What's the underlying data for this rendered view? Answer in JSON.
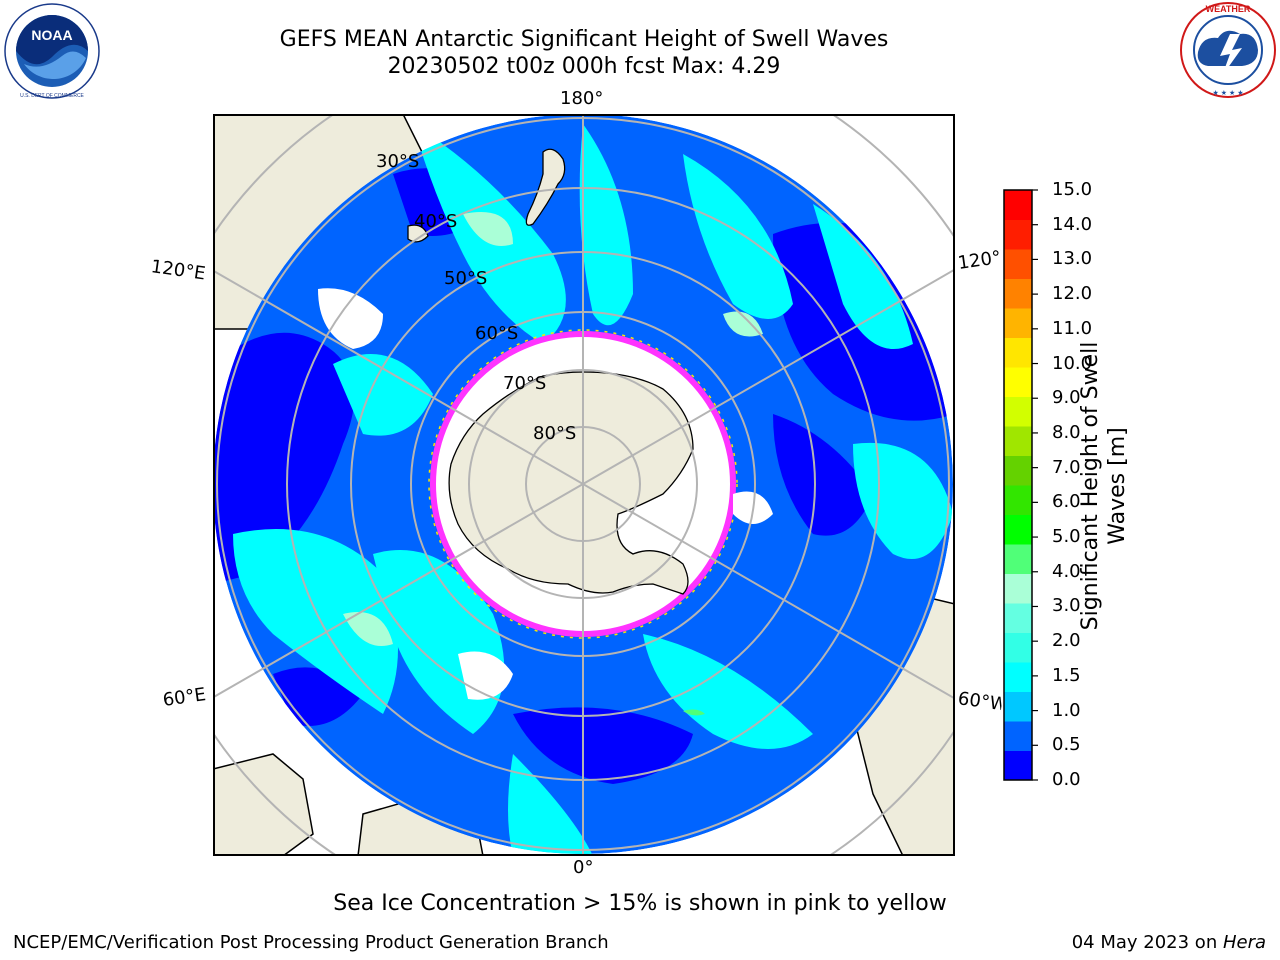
{
  "header": {
    "title_line1": "GEFS MEAN Antarctic Significant Height of Swell Waves",
    "title_line2": "20230502 t00z 000h fcst   Max: 4.29"
  },
  "logos": {
    "left": {
      "text": "NOAA",
      "ring_text": "NATIONAL OCEANIC AND ATMOSPHERIC ADMINISTRATION · U.S. DEPARTMENT OF COMMERCE"
    },
    "right": {
      "ring_text": "NATIONAL WEATHER SERVICE"
    }
  },
  "map": {
    "longitude_labels": {
      "top": "180°",
      "bottom": "0°",
      "left_upper": "120°E",
      "left_lower": "60°E",
      "right_upper": "120°W",
      "right_lower": "60°W"
    },
    "latitude_labels": [
      "30°S",
      "40°S",
      "50°S",
      "60°S",
      "70°S",
      "80°S"
    ],
    "colors": {
      "land": "#eeecdc",
      "sea_ice": "#ffffff",
      "ice_edge": "#ff33ff",
      "graticule": "#b4b4b4"
    }
  },
  "colorbar": {
    "label_line1": "Significant Height of Swell",
    "label_line2": "Waves [m]",
    "ticks": [
      "15.0",
      "14.0",
      "13.0",
      "12.0",
      "11.0",
      "10.0",
      "9.0",
      "8.0",
      "7.0",
      "6.0",
      "5.0",
      "4.0",
      "3.0",
      "2.0",
      "1.5",
      "1.0",
      "0.5",
      "0.0"
    ],
    "colors_bottom_to_top": [
      "#0000ff",
      "#0064ff",
      "#00c8ff",
      "#00ffff",
      "#32ffe6",
      "#64ffe1",
      "#aaffd7",
      "#50ff78",
      "#00ff00",
      "#32e600",
      "#64d200",
      "#a0e600",
      "#d2ff00",
      "#ffff00",
      "#ffe600",
      "#ffb400",
      "#ff8200",
      "#ff5000",
      "#ff1e00",
      "#ff0000"
    ]
  },
  "caption": "Sea Ice Concentration > 15% is shown in pink to yellow",
  "footer": {
    "left": "NCEP/EMC/Verification Post Processing Product Generation Branch",
    "right_date": "04 May 2023 on ",
    "right_machine": "Hera"
  }
}
